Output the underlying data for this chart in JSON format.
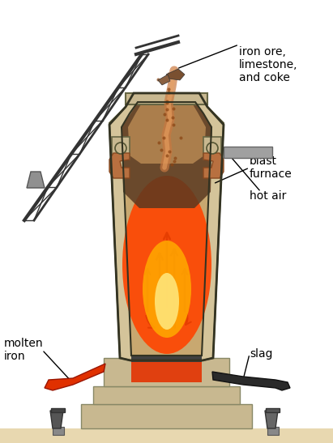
{
  "bg_color": "#ffffff",
  "furnace_outline_color": "#c8b88a",
  "furnace_wall_color": "#d4c49a",
  "furnace_inner_top_color": "#c8a87a",
  "glow_orange": "#ff6600",
  "glow_yellow": "#ffcc00",
  "dark_zone_color": "#3a2010",
  "slag_color": "#404040",
  "molten_red": "#e03010",
  "pipe_color": "#b87040",
  "base_color": "#c8b890",
  "crane_color": "#444444",
  "text_color": "#000000",
  "label_blast": "blast\nfurnace",
  "label_hotair": "hot air",
  "label_iron": "molten\niron",
  "label_slag": "slag",
  "label_feed": "iron ore,\nlimestone,\nand coke"
}
